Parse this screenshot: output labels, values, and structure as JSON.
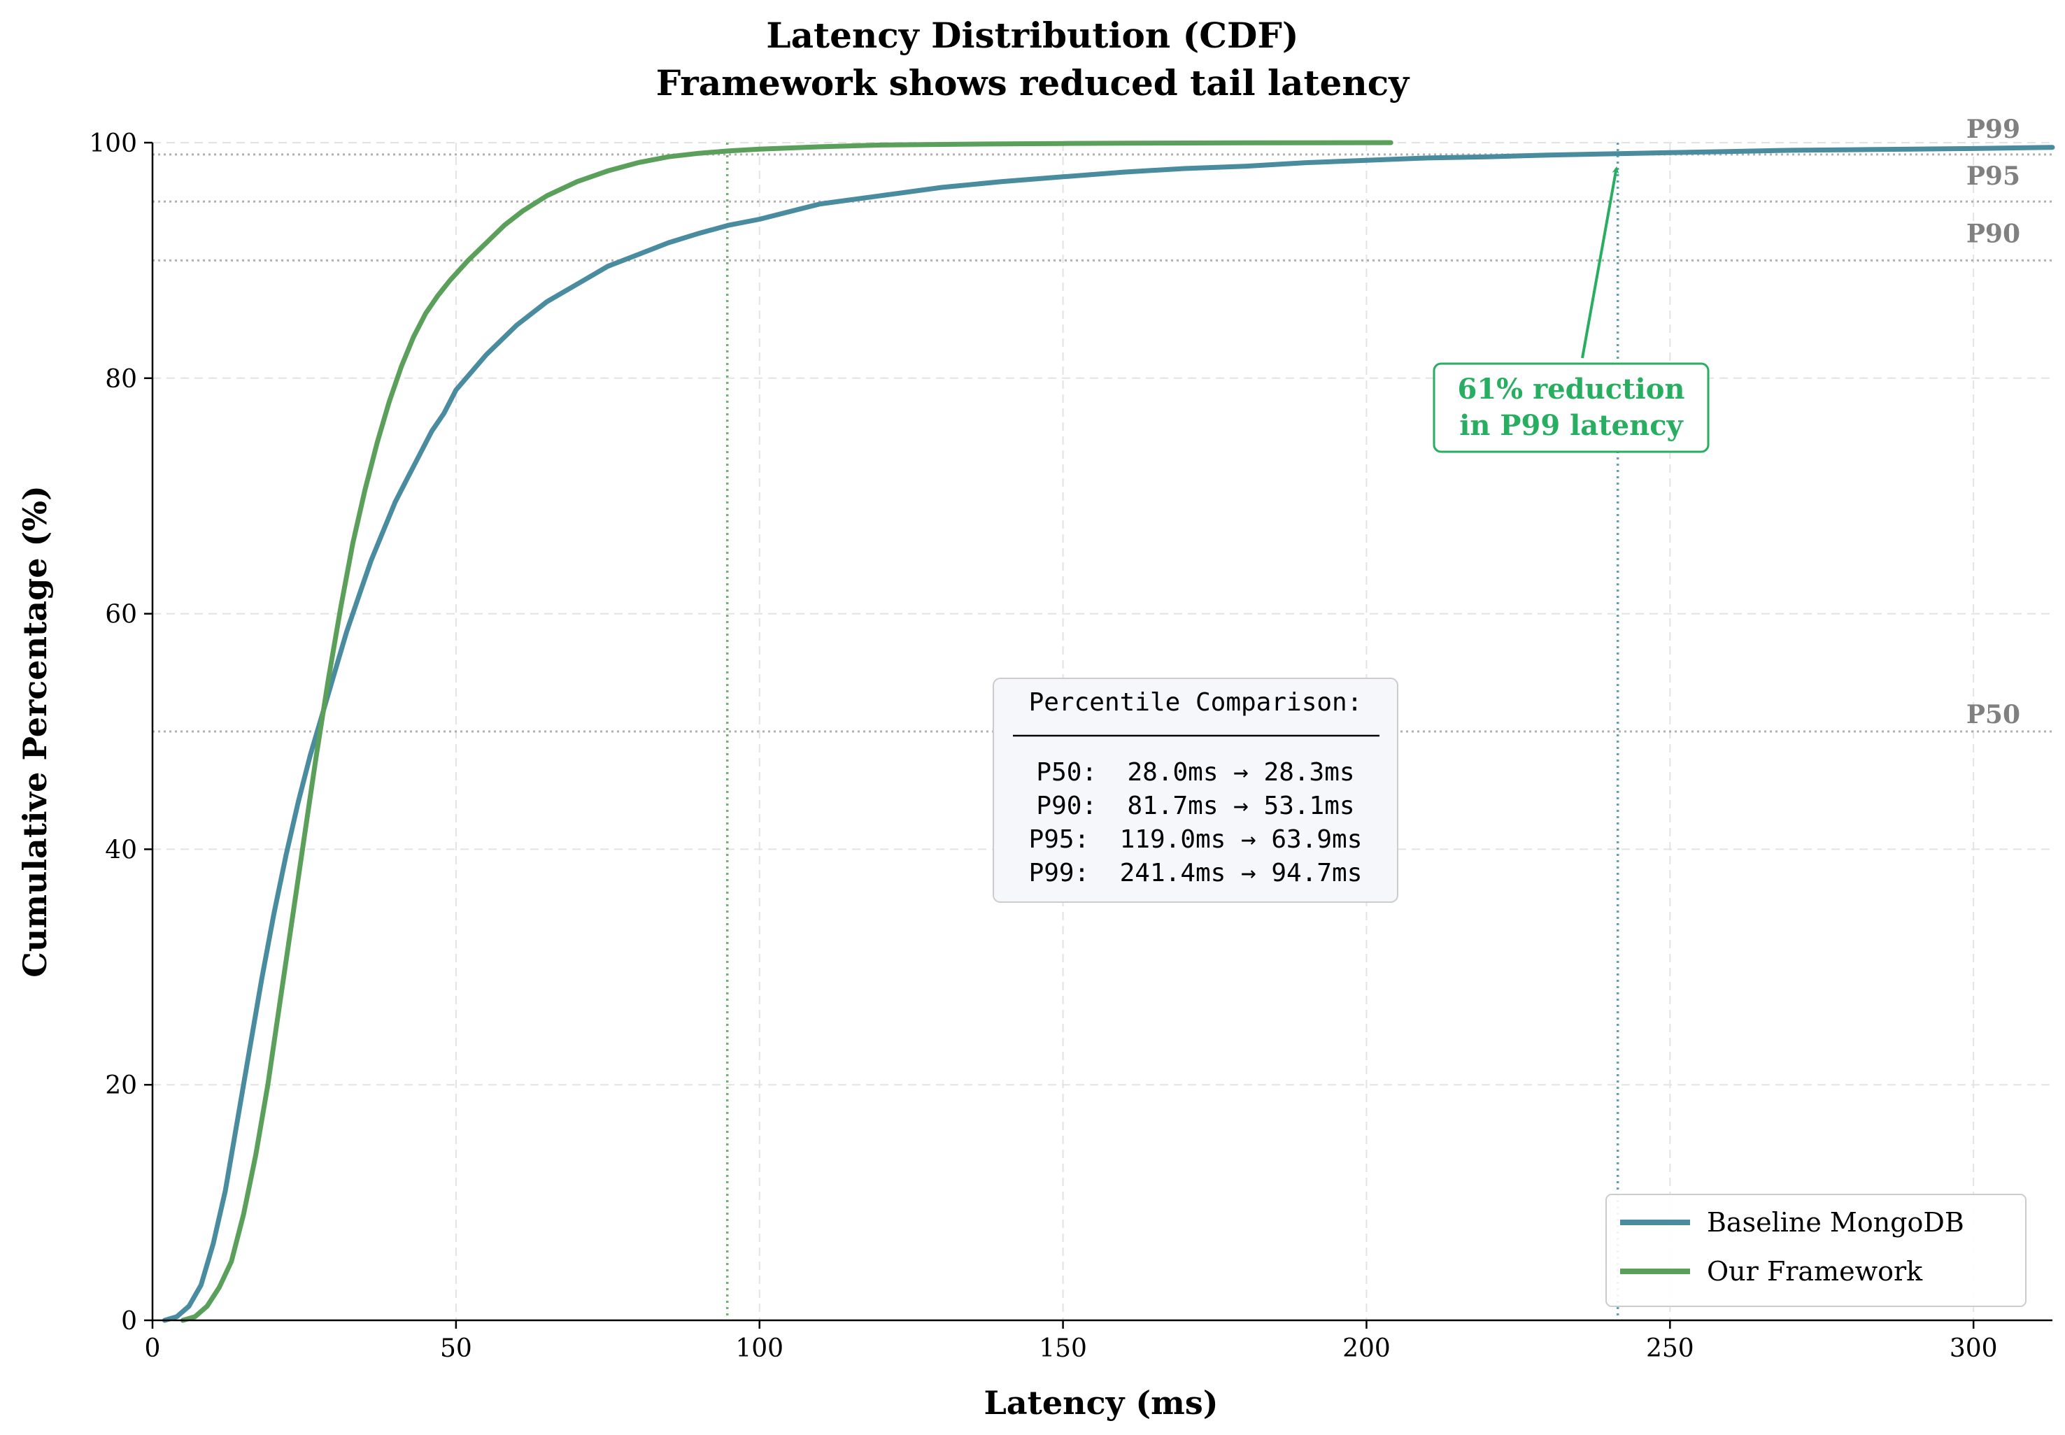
{
  "chart_data": {
    "type": "line",
    "title": "Latency Distribution (CDF)",
    "subtitle": "Framework shows reduced tail latency",
    "xlabel": "Latency (ms)",
    "ylabel": "Cumulative Percentage (%)",
    "xlim": [
      0,
      313
    ],
    "ylim": [
      0,
      100
    ],
    "xticks": [
      0,
      50,
      100,
      150,
      200,
      250,
      300
    ],
    "yticks": [
      0,
      20,
      40,
      60,
      80,
      100
    ],
    "grid": true,
    "legend_position": "lower-right",
    "percentile_lines": [
      {
        "label": "P50",
        "y": 50
      },
      {
        "label": "P90",
        "y": 90
      },
      {
        "label": "P95",
        "y": 95
      },
      {
        "label": "P99",
        "y": 99
      }
    ],
    "vertical_markers": [
      {
        "x": 94.7,
        "color": "#5ba55a"
      },
      {
        "x": 241.4,
        "color": "#4a8fa0"
      }
    ],
    "series": [
      {
        "name": "Baseline MongoDB",
        "color": "#4a8c9f",
        "x": [
          2,
          4,
          6,
          8,
          10,
          12,
          14,
          16,
          18,
          20,
          22,
          24,
          26,
          28,
          30,
          32,
          34,
          36,
          38,
          40,
          42,
          44,
          46,
          48,
          50,
          55,
          60,
          65,
          70,
          75,
          80,
          85,
          90,
          95,
          100,
          110,
          120,
          130,
          140,
          150,
          160,
          170,
          180,
          190,
          200,
          210,
          220,
          230,
          240,
          250,
          260,
          270,
          280,
          290,
          300,
          313
        ],
        "y": [
          0,
          0.3,
          1.2,
          3,
          6.5,
          11,
          17,
          23,
          29,
          34.5,
          39.5,
          44,
          48,
          51.5,
          55,
          58.5,
          61.5,
          64.5,
          67,
          69.5,
          71.5,
          73.5,
          75.5,
          77,
          79,
          82,
          84.5,
          86.5,
          88,
          89.5,
          90.5,
          91.5,
          92.3,
          93,
          93.5,
          94.8,
          95.5,
          96.2,
          96.7,
          97.1,
          97.5,
          97.8,
          98,
          98.3,
          98.5,
          98.7,
          98.8,
          98.95,
          99.05,
          99.15,
          99.25,
          99.35,
          99.4,
          99.45,
          99.5,
          99.6
        ]
      },
      {
        "name": "Our Framework",
        "color": "#5aa05a",
        "x": [
          5,
          7,
          9,
          11,
          13,
          15,
          17,
          19,
          21,
          23,
          25,
          27,
          29,
          31,
          33,
          35,
          37,
          39,
          41,
          43,
          45,
          47,
          49,
          52,
          55,
          58,
          61,
          65,
          70,
          75,
          80,
          85,
          90,
          95,
          100,
          110,
          120,
          130,
          140,
          150,
          160,
          180,
          204
        ],
        "y": [
          0,
          0.3,
          1.2,
          2.8,
          5,
          9,
          14,
          20,
          27,
          34,
          41,
          48,
          54.5,
          60.5,
          66,
          70.5,
          74.5,
          78,
          81,
          83.5,
          85.5,
          87,
          88.3,
          90,
          91.5,
          93,
          94.2,
          95.5,
          96.7,
          97.6,
          98.3,
          98.8,
          99.1,
          99.3,
          99.45,
          99.65,
          99.8,
          99.85,
          99.9,
          99.93,
          99.95,
          99.98,
          100
        ]
      }
    ],
    "annotation": {
      "lines": [
        "61% reduction",
        "in P99 latency"
      ],
      "arrow_to": {
        "x": 241.4,
        "y": 99
      },
      "text_at": {
        "x": 235,
        "y": 78
      },
      "color": "#27ae60"
    },
    "comparison_box": {
      "heading": "Percentile Comparison:",
      "rows": [
        "P50:  28.0ms → 28.3ms",
        "P90:  81.7ms → 53.1ms",
        "P95:  119.0ms → 63.9ms",
        "P99:  241.4ms → 94.7ms"
      ]
    }
  }
}
